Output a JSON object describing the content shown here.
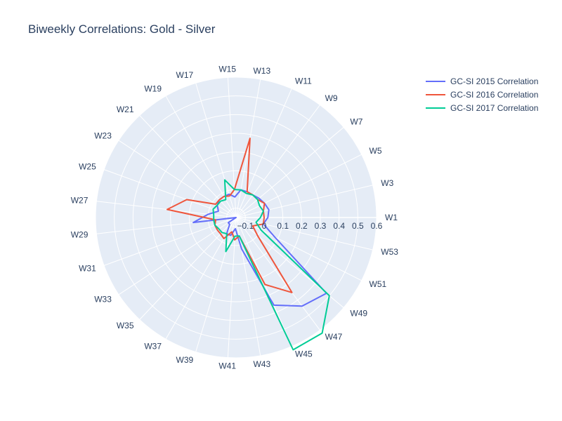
{
  "chart_data": {
    "type": "polar-line",
    "title": "Biweekly Correlations: Gold - Silver",
    "theta_categories": [
      "W1",
      "W3",
      "W5",
      "W7",
      "W9",
      "W11",
      "W13",
      "W15",
      "W17",
      "W19",
      "W21",
      "W23",
      "W25",
      "W27",
      "W29",
      "W31",
      "W33",
      "W35",
      "W37",
      "W39",
      "W41",
      "W43",
      "W45",
      "W47",
      "W49",
      "W51",
      "W53"
    ],
    "radial_range": [
      -0.15,
      0.6
    ],
    "radial_ticks": [
      -0.1,
      0,
      0.1,
      0.2,
      0.3,
      0.4,
      0.5,
      0.6
    ],
    "radial_tick_labels": [
      "−0.1",
      "0",
      "0.1",
      "0.2",
      "0.3",
      "0.4",
      "0.5",
      "0.6"
    ],
    "grid": true,
    "legend_position": "top-right",
    "series": [
      {
        "name": "GC-SI 2015 Correlation",
        "color": "#636efa",
        "values": [
          0.02,
          0.03,
          0.02,
          0.01,
          0.0,
          0.0,
          0.0,
          -0.04,
          -0.02,
          -0.02,
          -0.02,
          -0.03,
          -0.05,
          0.0,
          0.08,
          -0.15,
          -0.1,
          -0.1,
          -0.05,
          -0.05,
          -0.09,
          0.02,
          0.36,
          0.44,
          0.48,
          0.08,
          0.0
        ]
      },
      {
        "name": "GC-SI 2016 Correlation",
        "color": "#ef553b",
        "values": [
          0.0,
          0.0,
          0.02,
          0.0,
          0.0,
          0.0,
          0.28,
          0.0,
          -0.03,
          -0.02,
          -0.02,
          -0.02,
          0.13,
          0.22,
          -0.04,
          -0.03,
          -0.03,
          -0.03,
          -0.02,
          -0.07,
          -0.03,
          -0.05,
          0.24,
          0.35,
          0.0,
          -0.05,
          0.0
        ]
      },
      {
        "name": "GC-SI 2017 Correlation",
        "color": "#00cc96",
        "values": [
          -0.02,
          0.0,
          -0.01,
          0.0,
          0.0,
          -0.01,
          0.0,
          0.0,
          0.06,
          -0.04,
          -0.03,
          -0.03,
          -0.02,
          -0.03,
          -0.03,
          -0.03,
          -0.04,
          -0.04,
          -0.05,
          0.04,
          -0.05,
          -0.05,
          0.62,
          0.62,
          0.5,
          0.0,
          -0.04
        ]
      }
    ]
  }
}
